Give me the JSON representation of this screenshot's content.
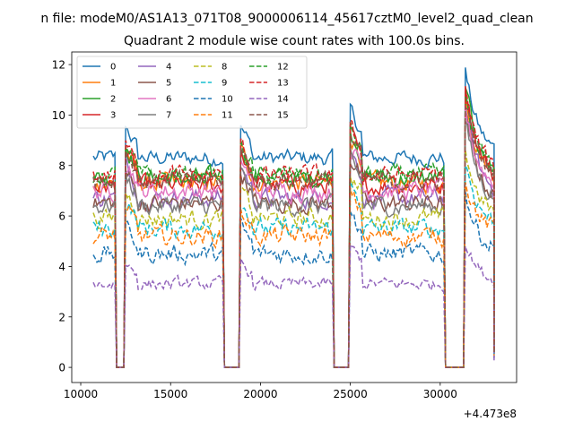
{
  "chart_data": {
    "type": "line",
    "suptitle": "n file: modeM0/AS1A13_071T08_9000006114_45617cztM0_level2_quad_clean",
    "title": "Quadrant 2 module wise count rates with 100.0s bins.",
    "xlabel": "",
    "ylabel": "",
    "x_offset_label": "+4.473e8",
    "xlim": [
      9500,
      34250
    ],
    "ylim": [
      -0.6,
      12.5
    ],
    "xticks": [
      10000,
      15000,
      20000,
      25000,
      30000
    ],
    "xtick_labels": [
      "10000",
      "15000",
      "20000",
      "25000",
      "30000"
    ],
    "yticks": [
      0,
      2,
      4,
      6,
      8,
      10,
      12
    ],
    "ytick_labels": [
      "0",
      "2",
      "4",
      "6",
      "8",
      "10",
      "12"
    ],
    "legend_position": "upper-left",
    "segments": [
      {
        "start": 10700,
        "end": 11900,
        "pre": "none",
        "post": "fall"
      },
      {
        "start": 12500,
        "end": 17900,
        "pre": "rise",
        "post": "fall"
      },
      {
        "start": 18900,
        "end": 24000,
        "pre": "rise",
        "post": "fall"
      },
      {
        "start": 25000,
        "end": 30200,
        "pre": "rise",
        "post": "fall"
      },
      {
        "start": 31400,
        "end": 33000,
        "pre": "rise",
        "post": "decay"
      }
    ],
    "gaps": [
      {
        "start": 12000,
        "end": 12400
      },
      {
        "start": 18000,
        "end": 18800
      },
      {
        "start": 24100,
        "end": 24900
      },
      {
        "start": 30300,
        "end": 31300
      }
    ],
    "series": [
      {
        "name": "0",
        "color": "#1f77b4",
        "dash": "solid",
        "level": 8.3,
        "noise": 0.25,
        "peak": 11.8
      },
      {
        "name": "1",
        "color": "#ff7f0e",
        "dash": "solid",
        "level": 7.3,
        "noise": 0.3,
        "peak": 11.0
      },
      {
        "name": "2",
        "color": "#2ca02c",
        "dash": "solid",
        "level": 7.5,
        "noise": 0.3,
        "peak": 11.2
      },
      {
        "name": "3",
        "color": "#d62728",
        "dash": "solid",
        "level": 7.2,
        "noise": 0.3,
        "peak": 11.4
      },
      {
        "name": "4",
        "color": "#9467bd",
        "dash": "solid",
        "level": 6.7,
        "noise": 0.3,
        "peak": 10.4
      },
      {
        "name": "5",
        "color": "#8c564b",
        "dash": "solid",
        "level": 6.5,
        "noise": 0.3,
        "peak": 10.0
      },
      {
        "name": "6",
        "color": "#e377c2",
        "dash": "solid",
        "level": 7.0,
        "noise": 0.3,
        "peak": 10.2
      },
      {
        "name": "7",
        "color": "#7f7f7f",
        "dash": "solid",
        "level": 6.4,
        "noise": 0.3,
        "peak": 9.8
      },
      {
        "name": "8",
        "color": "#bcbd22",
        "dash": "dashed",
        "level": 5.9,
        "noise": 0.3,
        "peak": 8.6
      },
      {
        "name": "9",
        "color": "#17becf",
        "dash": "dashed",
        "level": 5.5,
        "noise": 0.3,
        "peak": 8.2
      },
      {
        "name": "10",
        "color": "#1f77b4",
        "dash": "dashed",
        "level": 4.5,
        "noise": 0.3,
        "peak": 7.0
      },
      {
        "name": "11",
        "color": "#ff7f0e",
        "dash": "dashed",
        "level": 5.2,
        "noise": 0.3,
        "peak": 7.6
      },
      {
        "name": "12",
        "color": "#2ca02c",
        "dash": "dashed",
        "level": 7.6,
        "noise": 0.3,
        "peak": 10.8
      },
      {
        "name": "13",
        "color": "#d62728",
        "dash": "dashed",
        "level": 7.6,
        "noise": 0.3,
        "peak": 11.0
      },
      {
        "name": "14",
        "color": "#9467bd",
        "dash": "dashed",
        "level": 3.3,
        "noise": 0.2,
        "peak": 5.0
      },
      {
        "name": "15",
        "color": "#8c564b",
        "dash": "dashed",
        "level": 7.4,
        "noise": 0.3,
        "peak": 10.5
      }
    ]
  }
}
